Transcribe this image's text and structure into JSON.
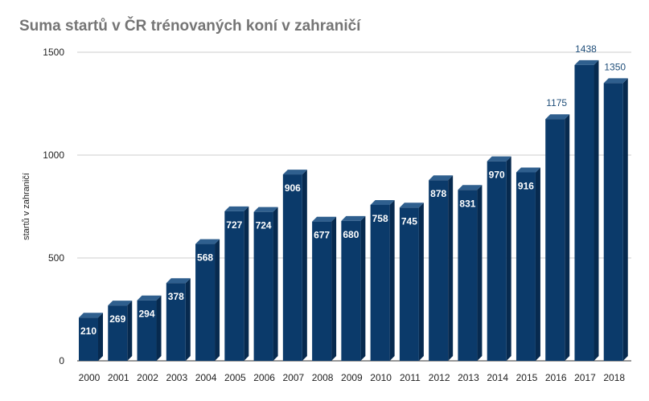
{
  "chart_data": {
    "type": "bar",
    "title": "Suma startů v ČR trénovaných koní v zahraničí",
    "xlabel": "",
    "ylabel": "startů v zahraničí",
    "ylim": [
      0,
      1500
    ],
    "yticks": [
      0,
      500,
      1000,
      1500
    ],
    "grid": true,
    "legend": "none",
    "categories": [
      "2000",
      "2001",
      "2002",
      "2003",
      "2004",
      "2005",
      "2006",
      "2007",
      "2008",
      "2009",
      "2010",
      "2011",
      "2012",
      "2013",
      "2014",
      "2015",
      "2016",
      "2017",
      "2018"
    ],
    "values": [
      210,
      269,
      294,
      378,
      568,
      727,
      724,
      906,
      677,
      680,
      758,
      745,
      878,
      831,
      970,
      916,
      1175,
      1438,
      1350
    ],
    "colors": {
      "bar_front": "#0b3a6a",
      "bar_top": "#2f5f8e",
      "bar_side": "#072a4f",
      "grid": "#cccccc",
      "title": "#757575"
    }
  }
}
